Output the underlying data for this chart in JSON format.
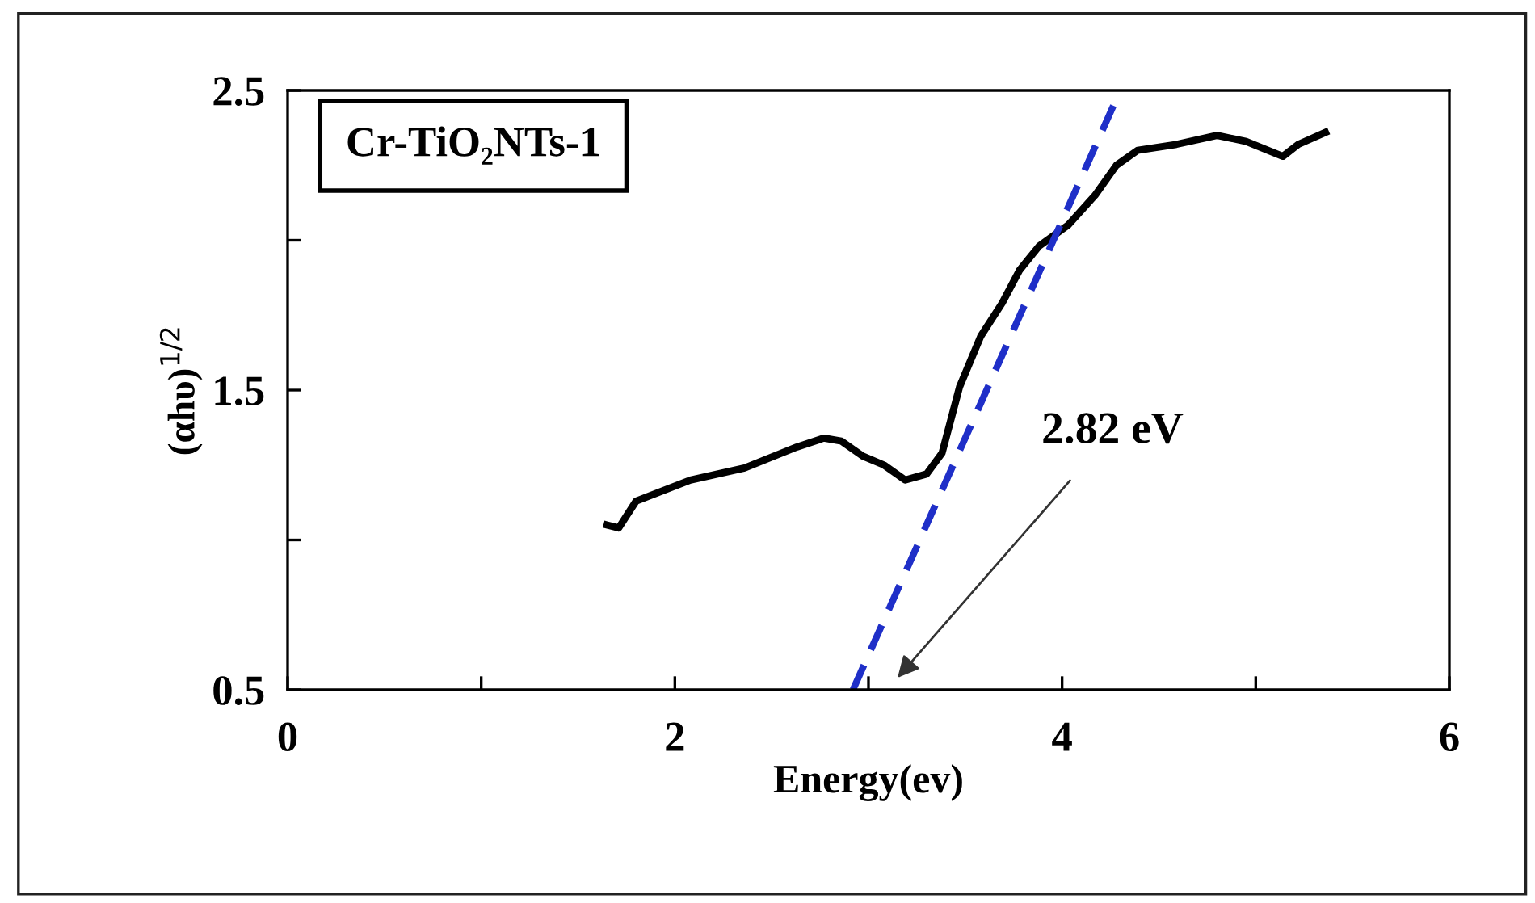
{
  "chart_data": {
    "type": "line",
    "xlabel": "Energy(ev)",
    "ylabel": "(αhυ)$^{1/2}$",
    "xlim": [
      0,
      6
    ],
    "ylim": [
      0.5,
      2.5
    ],
    "xticks": [
      0,
      {
        "value": 1,
        "label": null
      },
      2,
      {
        "value": 3,
        "label": null
      },
      4,
      {
        "value": 5,
        "label": null
      },
      6
    ],
    "yticks": [
      0.5,
      {
        "value": 1,
        "label": null
      },
      1.5,
      {
        "value": 2,
        "label": null
      },
      2.5
    ],
    "grid": false,
    "legend": false,
    "marker": "none",
    "annotations": [
      "Cr-TiO₂NTs-1",
      "2.82 eV"
    ],
    "series": [
      {
        "color": "#000000",
        "line_style": "solid",
        "x": [
          1.65,
          1.71,
          1.8,
          2.08,
          2.36,
          2.63,
          2.77,
          2.86,
          2.97,
          3.08,
          3.19,
          3.3,
          3.38,
          3.47,
          3.58,
          3.69,
          3.78,
          3.88,
          4.03,
          4.17,
          4.28,
          4.39,
          4.59,
          4.8,
          4.95,
          5.14,
          5.22,
          5.36
        ],
        "values": [
          1.05,
          1.04,
          1.13,
          1.2,
          1.24,
          1.31,
          1.34,
          1.33,
          1.28,
          1.25,
          1.2,
          1.22,
          1.29,
          1.51,
          1.68,
          1.79,
          1.9,
          1.98,
          2.05,
          2.15,
          2.25,
          2.3,
          2.32,
          2.35,
          2.33,
          2.28,
          2.32,
          2.36
        ]
      },
      {
        "color": "#1f2fc8",
        "line_style": "dashed",
        "x": [
          2.92,
          4.3
        ],
        "values": [
          0.5,
          2.5
        ]
      }
    ]
  }
}
